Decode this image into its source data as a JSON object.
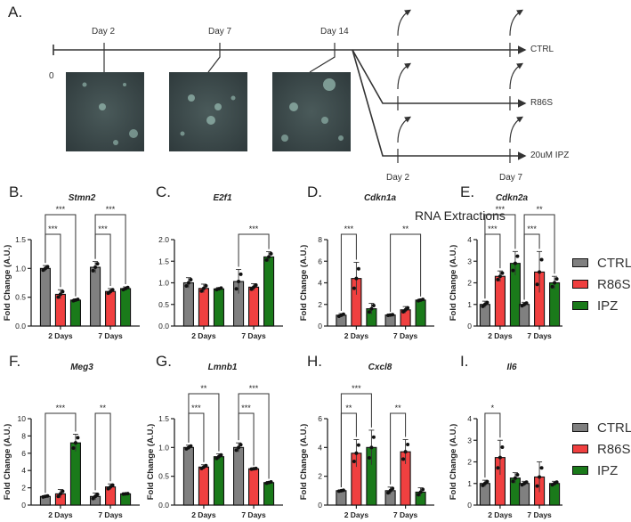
{
  "figure": {
    "panel_a": {
      "letter": "A.",
      "zero_label": "0",
      "timeline_labels": [
        "Day 2",
        "Day 7",
        "Day 14"
      ],
      "branches": [
        "CTRL",
        "R86S",
        "20uM IPZ"
      ],
      "branch_timepoints": [
        "Day 2",
        "Day 7"
      ],
      "legend_label": "RNA Extractions"
    },
    "colors": {
      "CTRL": "#808080",
      "R86S": "#f04040",
      "IPZ": "#1a7a1a",
      "axis": "#222222"
    },
    "legend": [
      {
        "label": "CTRL",
        "color": "#808080"
      },
      {
        "label": "R86S",
        "color": "#f04040"
      },
      {
        "label": "IPZ",
        "color": "#1a7a1a"
      }
    ]
  },
  "chart_data": [
    {
      "panel": "B.",
      "type": "bar",
      "title": "Stmn2",
      "ylabel": "Fold  Change (A.U.)",
      "ylim": [
        0,
        1.5
      ],
      "yticks": [
        "0.0",
        "0.5",
        "1.0",
        "1.5"
      ],
      "ytick_values": [
        0,
        0.5,
        1.0,
        1.5
      ],
      "categories": [
        "2 Days",
        "7 Days"
      ],
      "series": [
        {
          "name": "CTRL",
          "values": [
            1.0,
            1.02
          ],
          "err": [
            0.05,
            0.1
          ]
        },
        {
          "name": "R86S",
          "values": [
            0.55,
            0.6
          ],
          "err": [
            0.08,
            0.05
          ]
        },
        {
          "name": "IPZ",
          "values": [
            0.45,
            0.65
          ],
          "err": [
            0.02,
            0.03
          ]
        }
      ],
      "significance": [
        {
          "group": 0,
          "from": 0,
          "to": 1,
          "label": "***",
          "level": 1
        },
        {
          "group": 0,
          "from": 0,
          "to": 2,
          "label": "***",
          "level": 2
        },
        {
          "group": 1,
          "from": 0,
          "to": 1,
          "label": "***",
          "level": 1
        },
        {
          "group": 1,
          "from": 0,
          "to": 2,
          "label": "***",
          "level": 2
        }
      ]
    },
    {
      "panel": "C.",
      "type": "bar",
      "title": "E2f1",
      "ylabel": "",
      "ylim": [
        0,
        2.0
      ],
      "yticks": [
        "0.0",
        "0.5",
        "1.0",
        "1.5",
        "2.0"
      ],
      "ytick_values": [
        0,
        0.5,
        1.0,
        1.5,
        2.0
      ],
      "categories": [
        "2 Days",
        "7 Days"
      ],
      "series": [
        {
          "name": "CTRL",
          "values": [
            1.0,
            1.03
          ],
          "err": [
            0.12,
            0.28
          ]
        },
        {
          "name": "R86S",
          "values": [
            0.87,
            0.9
          ],
          "err": [
            0.1,
            0.08
          ]
        },
        {
          "name": "IPZ",
          "values": [
            0.86,
            1.6
          ],
          "err": [
            0.03,
            0.12
          ]
        }
      ],
      "significance": [
        {
          "group": 1,
          "from": 0,
          "to": 2,
          "label": "***",
          "level": 1
        }
      ]
    },
    {
      "panel": "D.",
      "type": "bar",
      "title": "Cdkn1a",
      "ylabel": "Fold  Change (A.U.)",
      "ylim": [
        0,
        8
      ],
      "yticks": [
        "0",
        "2",
        "4",
        "6",
        "8"
      ],
      "ytick_values": [
        0,
        2,
        4,
        6,
        8
      ],
      "categories": [
        "2 Days",
        "7 Days"
      ],
      "series": [
        {
          "name": "CTRL",
          "values": [
            1.0,
            1.02
          ],
          "err": [
            0.15,
            0.05
          ]
        },
        {
          "name": "R86S",
          "values": [
            4.4,
            1.5
          ],
          "err": [
            1.5,
            0.3
          ]
        },
        {
          "name": "IPZ",
          "values": [
            1.6,
            2.4
          ],
          "err": [
            0.5,
            0.1
          ]
        }
      ],
      "significance": [
        {
          "group": 0,
          "from": 0,
          "to": 1,
          "label": "***",
          "level": 1
        },
        {
          "group": 1,
          "from": 0,
          "to": 2,
          "label": "**",
          "level": 1
        }
      ]
    },
    {
      "panel": "E.",
      "type": "bar",
      "title": "Cdkn2a",
      "ylabel": "Fold  Change (A.U.)",
      "ylim": [
        0,
        4
      ],
      "yticks": [
        "0",
        "1",
        "2",
        "3",
        "4"
      ],
      "ytick_values": [
        0,
        1,
        2,
        3,
        4
      ],
      "categories": [
        "2 Days",
        "7 Days"
      ],
      "series": [
        {
          "name": "CTRL",
          "values": [
            1.0,
            1.0
          ],
          "err": [
            0.15,
            0.1
          ]
        },
        {
          "name": "R86S",
          "values": [
            2.3,
            2.5
          ],
          "err": [
            0.25,
            0.95
          ]
        },
        {
          "name": "IPZ",
          "values": [
            2.9,
            2.0
          ],
          "err": [
            0.55,
            0.3
          ]
        }
      ],
      "significance": [
        {
          "group": 0,
          "from": 0,
          "to": 1,
          "label": "***",
          "level": 1
        },
        {
          "group": 0,
          "from": 0,
          "to": 2,
          "label": "***",
          "level": 2
        },
        {
          "group": 1,
          "from": 0,
          "to": 1,
          "label": "***",
          "level": 1
        },
        {
          "group": 1,
          "from": 0,
          "to": 2,
          "label": "**",
          "level": 2
        }
      ]
    },
    {
      "panel": "F.",
      "type": "bar",
      "title": "Meg3",
      "ylabel": "Fold  Change (A.U.)",
      "ylim": [
        0,
        10
      ],
      "yticks": [
        "0",
        "2",
        "4",
        "6",
        "8",
        "10"
      ],
      "ytick_values": [
        0,
        2,
        4,
        6,
        8,
        10
      ],
      "categories": [
        "2 Days",
        "7 Days"
      ],
      "series": [
        {
          "name": "CTRL",
          "values": [
            1.0,
            1.0
          ],
          "err": [
            0.1,
            0.4
          ]
        },
        {
          "name": "R86S",
          "values": [
            1.3,
            2.1
          ],
          "err": [
            0.5,
            0.35
          ]
        },
        {
          "name": "IPZ",
          "values": [
            7.2,
            1.3
          ],
          "err": [
            1.0,
            0.05
          ]
        }
      ],
      "significance": [
        {
          "group": 0,
          "from": 0,
          "to": 2,
          "label": "***",
          "level": 1
        },
        {
          "group": 1,
          "from": 0,
          "to": 1,
          "label": "**",
          "level": 1
        }
      ]
    },
    {
      "panel": "G.",
      "type": "bar",
      "title": "Lmnb1",
      "ylabel": "Fold  Change (A.U.)",
      "ylim": [
        0,
        1.5
      ],
      "yticks": [
        "0.0",
        "0.5",
        "1.0",
        "1.5"
      ],
      "ytick_values": [
        0,
        0.5,
        1.0,
        1.5
      ],
      "categories": [
        "2 Days",
        "7 Days"
      ],
      "series": [
        {
          "name": "CTRL",
          "values": [
            1.0,
            1.0
          ],
          "err": [
            0.04,
            0.08
          ]
        },
        {
          "name": "R86S",
          "values": [
            0.66,
            0.63
          ],
          "err": [
            0.04,
            0.01
          ]
        },
        {
          "name": "IPZ",
          "values": [
            0.84,
            0.39
          ],
          "err": [
            0.05,
            0.02
          ]
        }
      ],
      "significance": [
        {
          "group": 0,
          "from": 0,
          "to": 1,
          "label": "***",
          "level": 1
        },
        {
          "group": 0,
          "from": 0,
          "to": 2,
          "label": "**",
          "level": 2
        },
        {
          "group": 1,
          "from": 0,
          "to": 1,
          "label": "***",
          "level": 1
        },
        {
          "group": 1,
          "from": 0,
          "to": 2,
          "label": "***",
          "level": 2
        }
      ]
    },
    {
      "panel": "H.",
      "type": "bar",
      "title": "Cxcl8",
      "ylabel": "Fold  Change (A.U.)",
      "ylim": [
        0,
        6
      ],
      "yticks": [
        "0",
        "2",
        "4",
        "6"
      ],
      "ytick_values": [
        0,
        2,
        4,
        6
      ],
      "categories": [
        "2 Days",
        "7 Days"
      ],
      "series": [
        {
          "name": "CTRL",
          "values": [
            1.0,
            1.0
          ],
          "err": [
            0.05,
            0.25
          ]
        },
        {
          "name": "R86S",
          "values": [
            3.6,
            3.7
          ],
          "err": [
            0.95,
            0.85
          ]
        },
        {
          "name": "IPZ",
          "values": [
            4.0,
            0.9
          ],
          "err": [
            1.2,
            0.3
          ]
        }
      ],
      "significance": [
        {
          "group": 0,
          "from": 0,
          "to": 1,
          "label": "**",
          "level": 1
        },
        {
          "group": 0,
          "from": 0,
          "to": 2,
          "label": "***",
          "level": 2
        },
        {
          "group": 1,
          "from": 0,
          "to": 1,
          "label": "**",
          "level": 1
        }
      ]
    },
    {
      "panel": "I.",
      "type": "bar",
      "title": "Il6",
      "ylabel": "Fold  Change (A.U.)",
      "ylim": [
        0,
        4
      ],
      "yticks": [
        "0",
        "1",
        "2",
        "3",
        "4"
      ],
      "ytick_values": [
        0,
        1,
        2,
        3,
        4
      ],
      "categories": [
        "2 Days",
        "7 Days"
      ],
      "series": [
        {
          "name": "CTRL",
          "values": [
            1.0,
            1.0
          ],
          "err": [
            0.15,
            0.1
          ]
        },
        {
          "name": "R86S",
          "values": [
            2.2,
            1.3
          ],
          "err": [
            0.8,
            0.7
          ]
        },
        {
          "name": "IPZ",
          "values": [
            1.25,
            1.0
          ],
          "err": [
            0.25,
            0.1
          ]
        }
      ],
      "significance": [
        {
          "group": 0,
          "from": 0,
          "to": 1,
          "label": "*",
          "level": 1
        }
      ]
    }
  ]
}
